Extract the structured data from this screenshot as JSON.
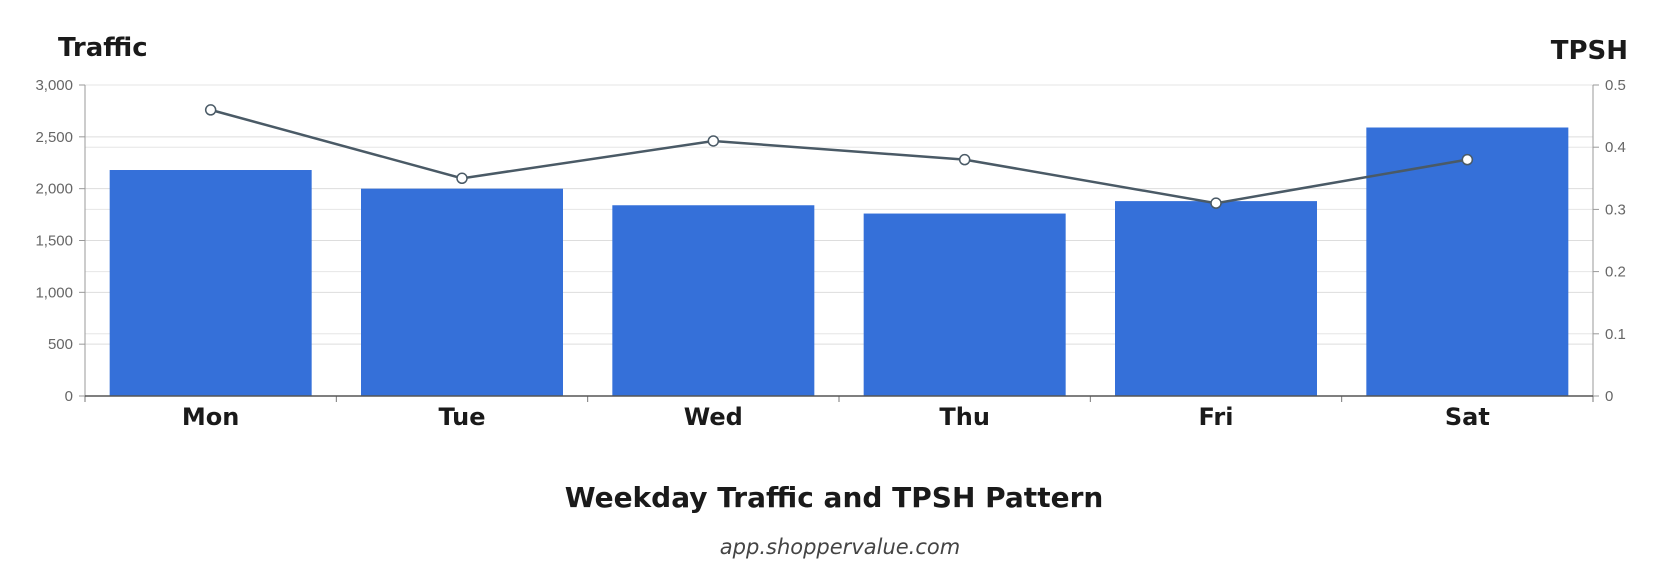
{
  "chart_data": {
    "type": "bar",
    "title": "Weekday Traffic and TPSH Pattern",
    "subtitle": "app.shoppervalue.com",
    "categories": [
      "Mon",
      "Tue",
      "Wed",
      "Thu",
      "Fri",
      "Sat"
    ],
    "series": [
      {
        "name": "Traffic",
        "type": "bar",
        "axis": "left",
        "color": "#3570d9",
        "values": [
          2180,
          2000,
          1840,
          1760,
          1880,
          2590
        ]
      },
      {
        "name": "TPSH",
        "type": "line",
        "axis": "right",
        "color": "#4a5a66",
        "values": [
          0.46,
          0.35,
          0.41,
          0.38,
          0.31,
          0.38
        ]
      }
    ],
    "left_axis": {
      "title": "Traffic",
      "range": [
        0,
        3000
      ],
      "ticks": [
        0,
        500,
        1000,
        1500,
        2000,
        2500,
        3000
      ],
      "tick_labels": [
        "0",
        "500",
        "1,000",
        "1,500",
        "2,000",
        "2,500",
        "3,000"
      ]
    },
    "right_axis": {
      "title": "TPSH",
      "range": [
        0,
        0.5
      ],
      "ticks": [
        0,
        0.1,
        0.2,
        0.3,
        0.4,
        0.5
      ],
      "tick_labels": [
        "0",
        "0.1",
        "0.2",
        "0.3",
        "0.4",
        "0.5"
      ]
    },
    "grid": true,
    "legend": "none"
  }
}
